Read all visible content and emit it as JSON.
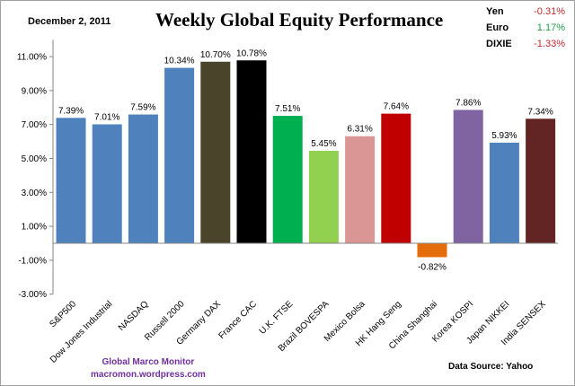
{
  "header": {
    "date": "December 2, 2011"
  },
  "currencies": [
    {
      "name": "Yen",
      "value": "-0.31%",
      "color": "#c0282d"
    },
    {
      "name": "Euro",
      "value": "1.17%",
      "color": "#22a04b"
    },
    {
      "name": "DIXIE",
      "value": "-1.33%",
      "color": "#c0282d"
    }
  ],
  "footer": {
    "credit_line1": "Global Marco Monitor",
    "credit_line2": "macromon.wordpress.com",
    "source": "Data Source:   Yahoo"
  },
  "chart_data": {
    "type": "bar",
    "title": "Weekly Global Equity Performance",
    "categories": [
      "S&P500",
      "Dow Jones Industrial",
      "NASDAQ",
      "Russell 2000",
      "Germany DAX",
      "France CAC",
      "U.K. FTSE",
      "Brazil BOVESPA",
      "Mexico Bolsa",
      "HK  Hang Seng",
      "China Shanghai",
      "Korea KOSPI",
      "Japan NIKKEI",
      "India SENSEX"
    ],
    "values": [
      7.39,
      7.01,
      7.59,
      10.34,
      10.7,
      10.78,
      7.51,
      5.45,
      6.31,
      7.64,
      -0.82,
      7.86,
      5.93,
      7.34
    ],
    "data_labels": [
      "7.39%",
      "7.01%",
      "7.59%",
      "10.34%",
      "10.70%",
      "10.78%",
      "7.51%",
      "5.45%",
      "6.31%",
      "7.64%",
      "-0.82%",
      "7.86%",
      "5.93%",
      "7.34%"
    ],
    "colors": [
      "#4f81bd",
      "#4f81bd",
      "#4f81bd",
      "#4f81bd",
      "#4a452a",
      "#000000",
      "#00b050",
      "#92d050",
      "#d99694",
      "#c00000",
      "#e46c0a",
      "#8064a2",
      "#4f81bd",
      "#632523"
    ],
    "yticks": [
      "11.00%",
      "9.00%",
      "7.00%",
      "5.00%",
      "3.00%",
      "1.00%",
      "-1.00%",
      "-3.00%"
    ],
    "ytick_values": [
      11,
      9,
      7,
      5,
      3,
      1,
      -1,
      -3
    ],
    "ylim": [
      -3,
      12
    ],
    "grid": false
  }
}
